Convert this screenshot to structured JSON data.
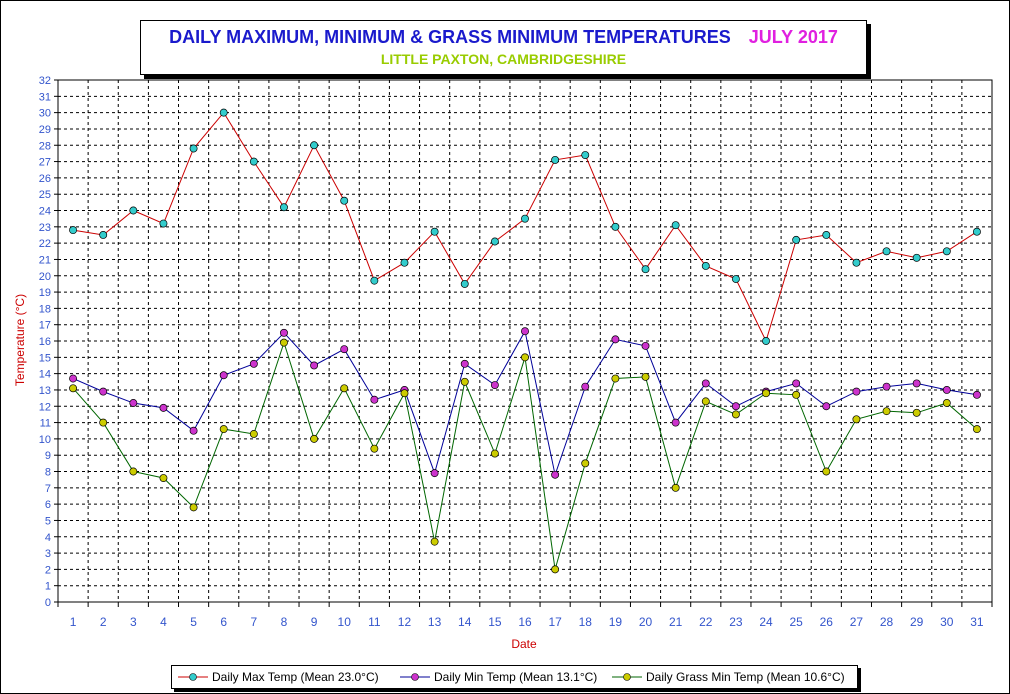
{
  "chart_data": {
    "type": "line",
    "title": "DAILY MAXIMUM, MINIMUM & GRASS MINIMUM TEMPERATURES",
    "title_month": "JULY 2017",
    "subtitle": "LITTLE PAXTON, CAMBRIDGESHIRE",
    "xlabel": "Date",
    "ylabel": "Temperature (°C)",
    "ylim": [
      0,
      32
    ],
    "yticks": [
      0,
      1,
      2,
      3,
      4,
      5,
      6,
      7,
      8,
      9,
      10,
      11,
      12,
      13,
      14,
      15,
      16,
      17,
      18,
      19,
      20,
      21,
      22,
      23,
      24,
      25,
      26,
      27,
      28,
      29,
      30,
      31,
      32
    ],
    "x": [
      1,
      2,
      3,
      4,
      5,
      6,
      7,
      8,
      9,
      10,
      11,
      12,
      13,
      14,
      15,
      16,
      17,
      18,
      19,
      20,
      21,
      22,
      23,
      24,
      25,
      26,
      27,
      28,
      29,
      30,
      31
    ],
    "grid": true,
    "legend_position": "bottom",
    "series": [
      {
        "name": "Daily Max Temp (Mean 23.0°C)",
        "line_color": "#cc0000",
        "marker_color": "#33cccc",
        "values": [
          22.8,
          22.5,
          24.0,
          23.2,
          27.8,
          30.0,
          27.0,
          24.2,
          28.0,
          24.6,
          19.7,
          20.8,
          22.7,
          19.5,
          22.1,
          23.5,
          27.1,
          27.4,
          23.0,
          20.4,
          23.1,
          20.6,
          19.8,
          16.0,
          22.2,
          22.5,
          20.8,
          21.5,
          21.1,
          21.5,
          22.7
        ]
      },
      {
        "name": "Daily Min Temp (Mean 13.1°C)",
        "line_color": "#000099",
        "marker_color": "#cc33cc",
        "values": [
          13.7,
          12.9,
          12.2,
          11.9,
          10.5,
          13.9,
          14.6,
          16.5,
          14.5,
          15.5,
          12.4,
          13.0,
          7.9,
          14.6,
          13.3,
          16.6,
          7.8,
          13.2,
          16.1,
          15.7,
          11.0,
          13.4,
          12.0,
          12.9,
          13.4,
          12.0,
          12.9,
          13.2,
          13.4,
          13.0,
          12.7
        ]
      },
      {
        "name": "Daily Grass Min Temp (Mean 10.6°C)",
        "line_color": "#006600",
        "marker_color": "#cccc00",
        "values": [
          13.1,
          11.0,
          8.0,
          7.6,
          5.8,
          10.6,
          10.3,
          15.9,
          10.0,
          13.1,
          9.4,
          12.8,
          3.7,
          13.5,
          9.1,
          15.0,
          2.0,
          8.5,
          13.7,
          13.8,
          7.0,
          12.3,
          11.5,
          12.8,
          12.7,
          8.0,
          11.2,
          11.7,
          11.6,
          12.2,
          10.6
        ]
      }
    ],
    "colors": {
      "axis_text": "#3355cc",
      "ylabel": "#cc0000",
      "xlabel": "#cc0000"
    }
  }
}
